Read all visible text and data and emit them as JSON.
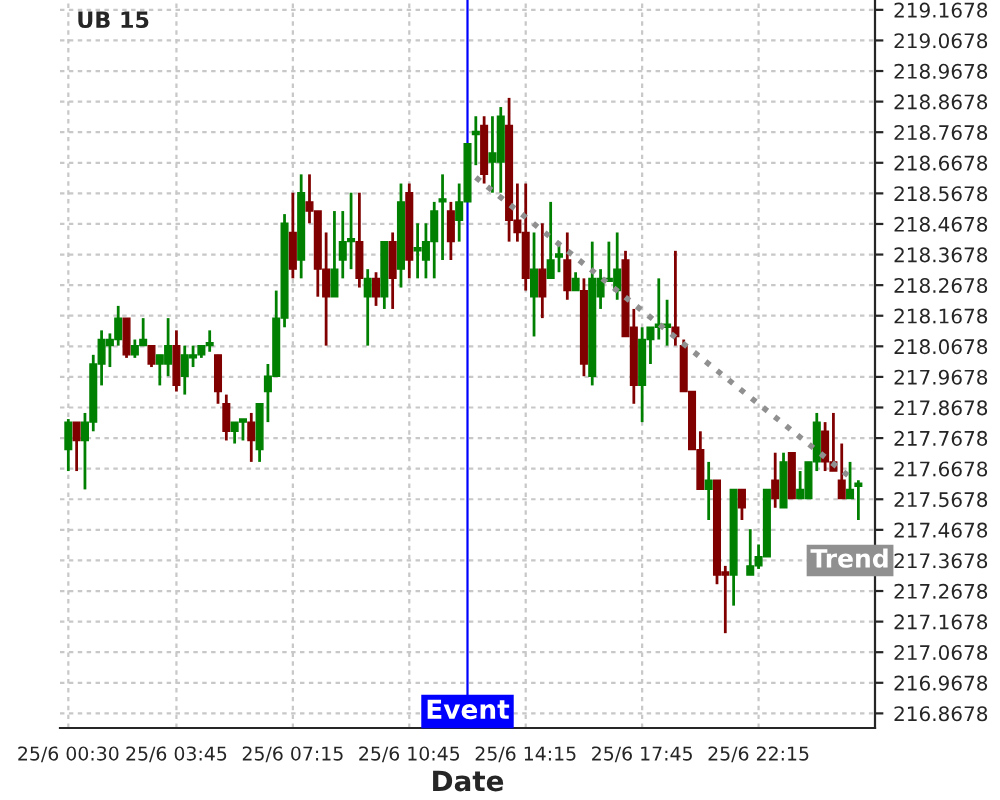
{
  "chart_data": {
    "type": "candlestick",
    "title": "UB 15",
    "xlabel": "Date",
    "categories": [
      "25/6 00:30",
      null,
      null,
      null,
      null,
      null,
      null,
      null,
      null,
      null,
      null,
      null,
      null,
      "25/6 03:45",
      null,
      null,
      null,
      null,
      null,
      null,
      null,
      null,
      null,
      null,
      null,
      null,
      null,
      "25/6 07:15",
      null,
      null,
      null,
      null,
      null,
      null,
      null,
      null,
      null,
      null,
      null,
      null,
      null,
      "25/6 10:45",
      null,
      null,
      null,
      null,
      null,
      null,
      null,
      null,
      null,
      null,
      null,
      null,
      null,
      "25/6 14:15",
      null,
      null,
      null,
      null,
      null,
      null,
      null,
      null,
      null,
      null,
      null,
      null,
      null,
      "25/6 17:45",
      null,
      null,
      null,
      null,
      null,
      null,
      null,
      null,
      null,
      null,
      null,
      null,
      null,
      "25/6 22:15",
      null,
      null,
      null,
      null,
      null,
      null,
      null,
      null,
      null,
      null,
      null,
      null
    ],
    "ohlc": [
      [
        217.73,
        217.83,
        217.66,
        217.82
      ],
      [
        217.82,
        217.82,
        217.66,
        217.76
      ],
      [
        217.76,
        217.85,
        217.6,
        217.82
      ],
      [
        217.82,
        218.04,
        217.79,
        218.01
      ],
      [
        218.01,
        218.12,
        217.94,
        218.09
      ],
      [
        218.07,
        218.11,
        218.0,
        218.09
      ],
      [
        218.09,
        218.2,
        218.07,
        218.16
      ],
      [
        218.16,
        218.16,
        218.03,
        218.04
      ],
      [
        218.04,
        218.09,
        218.03,
        218.07
      ],
      [
        218.07,
        218.16,
        218.07,
        218.09
      ],
      [
        218.07,
        218.07,
        218.0,
        218.01
      ],
      [
        218.01,
        218.04,
        217.94,
        218.04
      ],
      [
        218.01,
        218.16,
        217.97,
        218.07
      ],
      [
        218.07,
        218.12,
        217.92,
        217.94
      ],
      [
        217.97,
        218.07,
        217.91,
        218.04
      ],
      [
        218.03,
        218.07,
        218.0,
        218.04
      ],
      [
        218.04,
        218.07,
        218.03,
        218.07
      ],
      [
        218.07,
        218.12,
        218.05,
        218.08
      ],
      [
        218.04,
        218.04,
        217.88,
        217.92
      ],
      [
        217.88,
        217.91,
        217.76,
        217.79
      ],
      [
        217.79,
        217.82,
        217.75,
        217.82
      ],
      [
        217.82,
        217.83,
        217.76,
        217.83
      ],
      [
        217.82,
        217.85,
        217.69,
        217.76
      ],
      [
        217.73,
        217.88,
        217.69,
        217.88
      ],
      [
        217.92,
        218.01,
        217.82,
        217.97
      ],
      [
        217.97,
        218.25,
        217.97,
        218.16
      ],
      [
        218.16,
        218.5,
        218.13,
        218.47
      ],
      [
        218.44,
        218.57,
        218.29,
        218.32
      ],
      [
        218.35,
        218.63,
        218.29,
        218.57
      ],
      [
        218.54,
        218.63,
        218.47,
        218.51
      ],
      [
        218.51,
        218.51,
        218.23,
        218.32
      ],
      [
        218.32,
        218.44,
        218.07,
        218.23
      ],
      [
        218.23,
        218.51,
        218.23,
        218.32
      ],
      [
        218.35,
        218.51,
        218.29,
        218.41
      ],
      [
        218.41,
        218.57,
        218.32,
        218.42
      ],
      [
        218.41,
        218.57,
        218.26,
        218.29
      ],
      [
        218.23,
        218.32,
        218.07,
        218.29
      ],
      [
        218.29,
        218.31,
        218.2,
        218.23
      ],
      [
        218.23,
        218.41,
        218.19,
        218.41
      ],
      [
        218.41,
        218.44,
        218.19,
        218.29
      ],
      [
        218.32,
        218.6,
        218.26,
        218.54
      ],
      [
        218.57,
        218.6,
        218.29,
        218.35
      ],
      [
        218.38,
        218.47,
        218.29,
        218.39
      ],
      [
        218.35,
        218.47,
        218.29,
        218.41
      ],
      [
        218.41,
        218.54,
        218.29,
        218.51
      ],
      [
        218.54,
        218.63,
        218.35,
        218.55
      ],
      [
        218.51,
        218.54,
        218.35,
        218.41
      ],
      [
        218.48,
        218.6,
        218.41,
        218.54
      ],
      [
        218.54,
        218.73,
        218.54,
        218.73
      ],
      [
        218.76,
        218.82,
        218.66,
        218.77
      ],
      [
        218.79,
        218.82,
        218.6,
        218.63
      ],
      [
        218.67,
        218.82,
        218.57,
        218.7
      ],
      [
        218.67,
        218.85,
        218.57,
        218.82
      ],
      [
        218.79,
        218.88,
        218.41,
        218.48
      ],
      [
        218.48,
        218.6,
        218.41,
        218.44
      ],
      [
        218.44,
        218.6,
        218.25,
        218.29
      ],
      [
        218.23,
        218.44,
        218.1,
        218.32
      ],
      [
        218.32,
        218.47,
        218.16,
        218.23
      ],
      [
        218.29,
        218.54,
        218.29,
        218.35
      ],
      [
        218.36,
        218.41,
        218.31,
        218.37
      ],
      [
        218.35,
        218.44,
        218.22,
        218.25
      ],
      [
        218.25,
        218.31,
        218.25,
        218.29
      ],
      [
        218.25,
        218.29,
        217.97,
        218.01
      ],
      [
        217.97,
        218.41,
        217.94,
        218.29
      ],
      [
        218.23,
        218.32,
        218.19,
        218.29
      ],
      [
        218.28,
        218.41,
        218.28,
        218.29
      ],
      [
        218.25,
        218.44,
        218.22,
        218.32
      ],
      [
        218.35,
        218.38,
        218.1,
        218.1
      ],
      [
        218.13,
        218.19,
        217.88,
        217.94
      ],
      [
        217.94,
        218.13,
        217.82,
        218.09
      ],
      [
        218.09,
        218.13,
        218.01,
        218.13
      ],
      [
        218.13,
        218.29,
        218.09,
        218.14
      ],
      [
        218.13,
        218.22,
        218.07,
        218.14
      ],
      [
        218.13,
        218.38,
        218.07,
        218.1
      ],
      [
        218.07,
        218.09,
        217.92,
        217.92
      ],
      [
        217.92,
        217.92,
        217.73,
        217.73
      ],
      [
        217.73,
        217.79,
        217.6,
        217.6
      ],
      [
        217.6,
        217.69,
        217.5,
        217.63
      ],
      [
        217.63,
        217.63,
        217.29,
        217.32
      ],
      [
        217.33,
        217.35,
        217.13,
        217.32
      ],
      [
        217.32,
        217.6,
        217.22,
        217.6
      ],
      [
        217.6,
        217.6,
        217.5,
        217.54
      ],
      [
        217.32,
        217.47,
        217.32,
        217.35
      ],
      [
        217.35,
        217.42,
        217.34,
        217.38
      ],
      [
        217.38,
        217.6,
        217.38,
        217.6
      ],
      [
        217.63,
        217.72,
        217.54,
        217.57
      ],
      [
        217.54,
        217.72,
        217.54,
        217.69
      ],
      [
        217.72,
        217.72,
        217.57,
        217.57
      ],
      [
        217.57,
        217.66,
        217.57,
        217.6
      ],
      [
        217.57,
        217.69,
        217.57,
        217.69
      ],
      [
        217.69,
        217.85,
        217.66,
        217.82
      ],
      [
        217.79,
        217.82,
        217.66,
        217.69
      ],
      [
        217.69,
        217.85,
        217.66,
        217.66
      ],
      [
        217.63,
        217.75,
        217.57,
        217.57
      ],
      [
        217.57,
        217.69,
        217.57,
        217.6
      ],
      [
        217.61,
        217.63,
        217.5,
        217.62
      ]
    ],
    "colors": [
      "#008000",
      "#800000",
      "#008000",
      "#008000",
      "#008000",
      "#008000",
      "#008000",
      "#800000",
      "#008000",
      "#008000",
      "#800000",
      "#008000",
      "#008000",
      "#800000",
      "#008000",
      "#008000",
      "#008000",
      "#008000",
      "#800000",
      "#800000",
      "#008000",
      "#008000",
      "#800000",
      "#008000",
      "#008000",
      "#008000",
      "#008000",
      "#800000",
      "#008000",
      "#800000",
      "#800000",
      "#800000",
      "#008000",
      "#008000",
      "#008000",
      "#800000",
      "#008000",
      "#800000",
      "#008000",
      "#800000",
      "#008000",
      "#800000",
      "#008000",
      "#008000",
      "#008000",
      "#008000",
      "#800000",
      "#008000",
      "#008000",
      "#008000",
      "#800000",
      "#008000",
      "#008000",
      "#800000",
      "#800000",
      "#800000",
      "#008000",
      "#800000",
      "#008000",
      "#008000",
      "#800000",
      "#008000",
      "#800000",
      "#008000",
      "#008000",
      "#008000",
      "#008000",
      "#800000",
      "#800000",
      "#008000",
      "#008000",
      "#008000",
      "#008000",
      "#800000",
      "#800000",
      "#800000",
      "#800000",
      "#008000",
      "#800000",
      "#800000",
      "#008000",
      "#800000",
      "#008000",
      "#008000",
      "#008000",
      "#800000",
      "#008000",
      "#800000",
      "#008000",
      "#008000",
      "#008000",
      "#800000",
      "#800000",
      "#800000",
      "#008000",
      "#008000"
    ],
    "series": [
      {
        "name": "Trend",
        "type": "line",
        "color": "#909090",
        "line_style": "dotted",
        "values": [
          null,
          null,
          null,
          null,
          null,
          null,
          null,
          null,
          null,
          null,
          null,
          null,
          null,
          null,
          null,
          null,
          null,
          null,
          null,
          null,
          null,
          null,
          null,
          null,
          null,
          null,
          null,
          null,
          null,
          null,
          null,
          null,
          null,
          null,
          null,
          null,
          null,
          null,
          null,
          null,
          null,
          null,
          null,
          null,
          null,
          null,
          null,
          null,
          null,
          218.62,
          null,
          null,
          null,
          null,
          null,
          null,
          null,
          null,
          null,
          null,
          null,
          null,
          null,
          null,
          null,
          null,
          null,
          null,
          null,
          null,
          null,
          null,
          null,
          null,
          null,
          null,
          null,
          null,
          null,
          null,
          null,
          null,
          null,
          null,
          null,
          null,
          null,
          null,
          null,
          null,
          null,
          null,
          null,
          null,
          217.64,
          null
        ]
      }
    ],
    "annotations": [
      "Event"
    ],
    "ylim": [
      216.82,
      219.2
    ],
    "yticks": [
      216.8678,
      216.9678,
      217.0678,
      217.1678,
      217.2678,
      217.3678,
      217.4678,
      217.5678,
      217.6678,
      217.7678,
      217.8678,
      217.9678,
      218.0678,
      218.1678,
      218.2678,
      218.3678,
      218.4678,
      218.5678,
      218.6678,
      218.7678,
      218.8678,
      218.9678,
      219.0678,
      219.1678
    ],
    "grid": true
  }
}
